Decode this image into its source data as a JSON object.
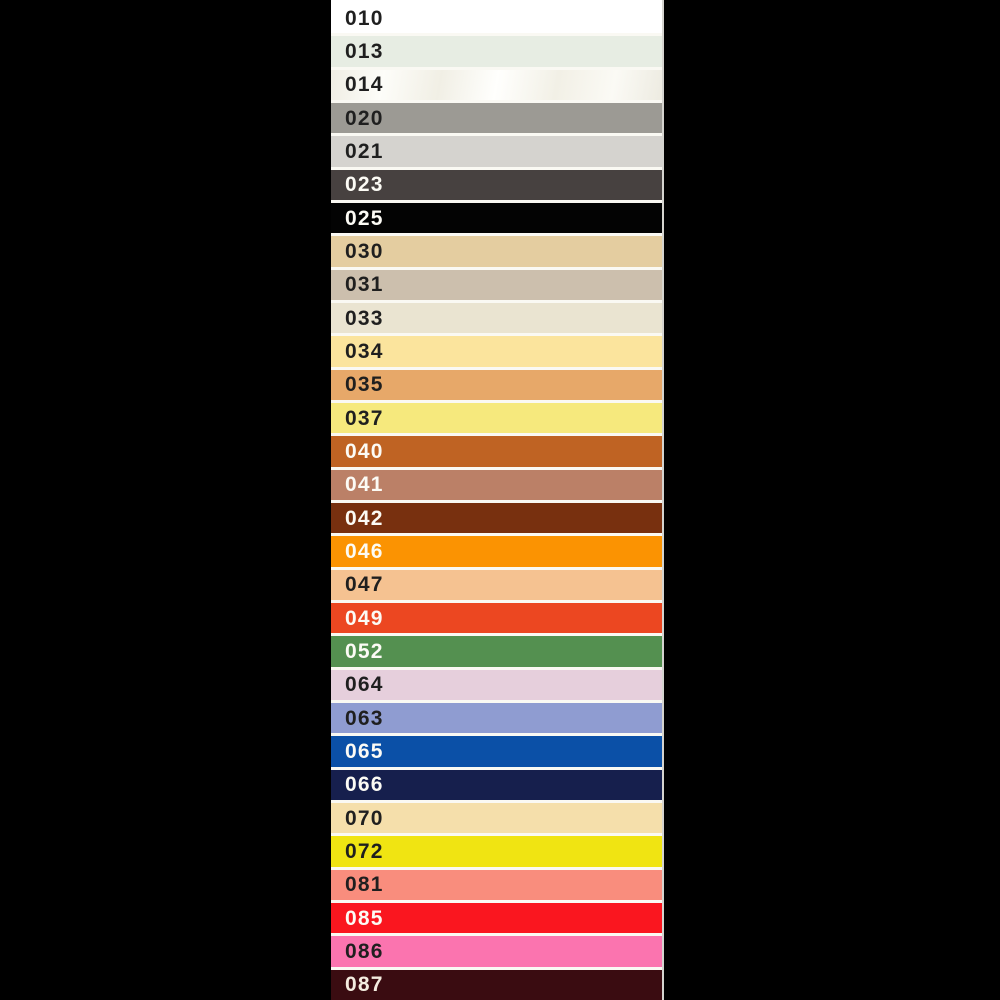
{
  "page": {
    "background": "#000000",
    "separator_color": "#FAF9F3"
  },
  "swatch_strip": {
    "description": "vertical color sample card with numbered swatch bands",
    "rows": [
      {
        "code": "010",
        "color": "#FFFFFF",
        "text_color": "#1F1F1F"
      },
      {
        "code": "013",
        "color": "#E7EDE3",
        "text_color": "#1F1F1F"
      },
      {
        "code": "014",
        "color": "#F6F4EC",
        "text_color": "#1F1F1F",
        "sheen": true
      },
      {
        "code": "020",
        "color": "#9C9A94",
        "text_color": "#1F1F1F"
      },
      {
        "code": "021",
        "color": "#D5D3CF",
        "text_color": "#1F1F1F"
      },
      {
        "code": "023",
        "color": "#474140",
        "text_color": "#FCFBF5"
      },
      {
        "code": "025",
        "color": "#030303",
        "text_color": "#FCFBF5"
      },
      {
        "code": "030",
        "color": "#E4CDA0",
        "text_color": "#1F1F1F"
      },
      {
        "code": "031",
        "color": "#CCBFAD",
        "text_color": "#1F1F1F"
      },
      {
        "code": "033",
        "color": "#EAE4D1",
        "text_color": "#1F1F1F"
      },
      {
        "code": "034",
        "color": "#FBE49D",
        "text_color": "#1F1F1F"
      },
      {
        "code": "035",
        "color": "#E7A869",
        "text_color": "#1F1F1F"
      },
      {
        "code": "037",
        "color": "#F6E97D",
        "text_color": "#1F1F1F"
      },
      {
        "code": "040",
        "color": "#BF6323",
        "text_color": "#FCFBF5"
      },
      {
        "code": "041",
        "color": "#BB8067",
        "text_color": "#FCFBF5"
      },
      {
        "code": "042",
        "color": "#78300F",
        "text_color": "#FCFBF5"
      },
      {
        "code": "046",
        "color": "#FB9302",
        "text_color": "#FCFBF5"
      },
      {
        "code": "047",
        "color": "#F5C291",
        "text_color": "#1F1F1F"
      },
      {
        "code": "049",
        "color": "#EC4721",
        "text_color": "#FCFBF5"
      },
      {
        "code": "052",
        "color": "#549050",
        "text_color": "#FCFBF5"
      },
      {
        "code": "064",
        "color": "#E6CFDC",
        "text_color": "#1F1F1F"
      },
      {
        "code": "063",
        "color": "#8F9CD1",
        "text_color": "#1F1F1F"
      },
      {
        "code": "065",
        "color": "#0B50A7",
        "text_color": "#FCFBF5"
      },
      {
        "code": "066",
        "color": "#161F4D",
        "text_color": "#FCFBF5"
      },
      {
        "code": "070",
        "color": "#F5DFAB",
        "text_color": "#1F1F1F"
      },
      {
        "code": "072",
        "color": "#F0E412",
        "text_color": "#1F1F1F"
      },
      {
        "code": "081",
        "color": "#F98D7D",
        "text_color": "#1F1F1F"
      },
      {
        "code": "085",
        "color": "#FA161F",
        "text_color": "#FCFBF5"
      },
      {
        "code": "086",
        "color": "#FB74AF",
        "text_color": "#1F1F1F"
      },
      {
        "code": "087",
        "color": "#3A0C11",
        "text_color": "#F3ECDF"
      }
    ]
  }
}
